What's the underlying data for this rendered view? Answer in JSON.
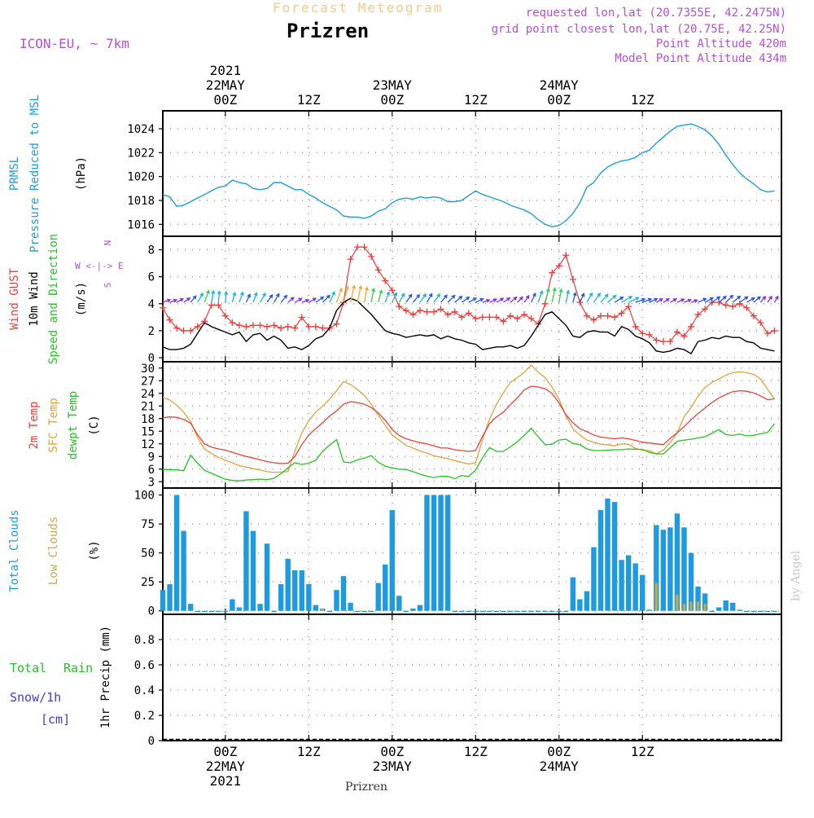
{
  "header": {
    "super_title": "Forecast Meteogram",
    "title": "Prizren",
    "model": "ICON-EU, ~ 7km",
    "info_lines": [
      "requested lon,lat (20.7355E, 42.2475N)",
      "grid point closest lon,lat (20.75E, 42.25N)",
      "Point Altitude 420m",
      "Model Point Altitude 434m"
    ]
  },
  "footer": {
    "location": "Prizren",
    "credit": "by Angel"
  },
  "time_axis": {
    "top_year": "2021",
    "ticks": [
      {
        "h": 24,
        "top": [
          "22MAY",
          "00Z"
        ],
        "bottom": [
          "00Z",
          "22MAY",
          "2021"
        ]
      },
      {
        "h": 36,
        "top": [
          "12Z"
        ],
        "bottom": [
          "12Z"
        ]
      },
      {
        "h": 48,
        "top": [
          "23MAY",
          "00Z"
        ],
        "bottom": [
          "00Z",
          "23MAY"
        ]
      },
      {
        "h": 60,
        "top": [
          "12Z"
        ],
        "bottom": [
          "12Z"
        ]
      },
      {
        "h": 72,
        "top": [
          "24MAY",
          "00Z"
        ],
        "bottom": [
          "00Z",
          "24MAY"
        ]
      },
      {
        "h": 84,
        "top": [
          "12Z"
        ],
        "bottom": [
          "12Z"
        ]
      }
    ]
  },
  "panel_labels": {
    "pressure": [
      "PRMSL",
      "Pressure Reduced to MSL",
      "(hPa)"
    ],
    "wind": [
      "Wind GUST",
      "10m Wind",
      "Speed and Direction",
      "(m/s)"
    ],
    "compass": [
      "N",
      "W <-|-> E",
      "S"
    ],
    "temp": [
      "2m Temp",
      "SFC Temp",
      "dewpt Temp",
      "(C)"
    ],
    "clouds": [
      "Total Clouds",
      "Low Clouds",
      "(%)"
    ],
    "precip": [
      "Total",
      "Rain",
      "Snow/1h",
      "[cm]",
      "1hr Precip (mm)"
    ]
  },
  "colors": {
    "pressure": "#1e9be0",
    "gust": "#ee3b3b",
    "wind": "#000000",
    "temp2m": "#e8403a",
    "sfc": "#e0a23a",
    "dewpt": "#22c422",
    "total_clouds": "#1e9be0",
    "low_clouds": "#c9a84a",
    "rain": "#22c422",
    "snow": "#3b3bdd",
    "meta": "#b44fd6"
  },
  "chart_data": [
    {
      "type": "line",
      "name": "pressure",
      "ylabel": "(hPa)",
      "ylim": [
        1015,
        1025.5
      ],
      "yticks": [
        1016,
        1018,
        1020,
        1022,
        1024
      ],
      "start_hour": 15,
      "step": 1,
      "series": [
        {
          "name": "PRMSL",
          "values": [
            1018.5,
            1018.3,
            1017.5,
            1017.6,
            1017.9,
            1018.2,
            1018.5,
            1018.8,
            1019.1,
            1019.2,
            1019.7,
            1019.5,
            1019.4,
            1019.0,
            1018.9,
            1019.0,
            1019.5,
            1019.5,
            1019.2,
            1018.9,
            1018.9,
            1018.5,
            1018.2,
            1017.8,
            1017.5,
            1017.2,
            1016.7,
            1016.6,
            1016.6,
            1016.5,
            1016.7,
            1017.1,
            1017.3,
            1017.8,
            1018.1,
            1018.2,
            1018.1,
            1018.3,
            1018.2,
            1018.3,
            1018.2,
            1017.9,
            1017.9,
            1018.0,
            1018.4,
            1018.8,
            1018.5,
            1018.3,
            1018.1,
            1017.9,
            1017.6,
            1017.4,
            1017.2,
            1016.9,
            1016.4,
            1016.0,
            1015.8,
            1015.9,
            1016.3,
            1016.9,
            1017.8,
            1019.1,
            1019.5,
            1020.3,
            1020.8,
            1021.1,
            1021.3,
            1021.4,
            1021.6,
            1022.0,
            1022.2,
            1022.8,
            1023.3,
            1023.8,
            1024.2,
            1024.3,
            1024.4,
            1024.2,
            1023.9,
            1023.4,
            1022.7,
            1021.8,
            1021.0,
            1020.3,
            1019.8,
            1019.4,
            1018.9,
            1018.7,
            1018.8
          ]
        }
      ]
    },
    {
      "type": "line",
      "name": "wind",
      "ylabel": "(m/s)",
      "ylim": [
        -0.3,
        9
      ],
      "yticks": [
        0,
        2,
        4,
        6,
        8
      ],
      "start_hour": 15,
      "step": 1,
      "series": [
        {
          "name": "Wind GUST",
          "values": [
            3.7,
            2.8,
            2.2,
            2.0,
            2.0,
            2.3,
            2.7,
            3.9,
            3.9,
            3.1,
            2.6,
            2.4,
            2.3,
            2.4,
            2.4,
            2.3,
            2.4,
            2.2,
            2.3,
            2.2,
            3.0,
            2.3,
            2.3,
            2.2,
            2.2,
            2.5,
            4.1,
            7.3,
            8.2,
            8.2,
            7.5,
            6.5,
            5.7,
            5.0,
            3.8,
            3.5,
            3.2,
            3.5,
            3.4,
            3.4,
            3.6,
            3.2,
            3.4,
            3.0,
            3.3,
            2.9,
            3.0,
            3.0,
            3.0,
            2.7,
            3.1,
            2.9,
            3.2,
            2.9,
            2.5,
            4.0,
            6.3,
            6.8,
            7.6,
            5.8,
            4.1,
            3.1,
            2.8,
            3.1,
            3.1,
            3.0,
            3.3,
            3.8,
            2.3,
            1.8,
            1.7,
            1.3,
            1.2,
            1.2,
            1.9,
            1.6,
            2.3,
            3.2,
            3.6,
            4.1,
            4.1,
            3.9,
            3.8,
            4.0,
            3.7,
            3.1,
            2.6,
            1.8,
            2.0
          ]
        },
        {
          "name": "10m Wind",
          "values": [
            0.8,
            0.6,
            0.6,
            0.7,
            1.0,
            1.8,
            2.6,
            2.3,
            2.1,
            1.9,
            1.7,
            1.9,
            1.2,
            1.7,
            1.8,
            1.3,
            1.6,
            1.3,
            0.7,
            0.8,
            0.6,
            0.9,
            1.4,
            1.6,
            2.2,
            3.5,
            4.1,
            4.4,
            4.2,
            3.7,
            3.2,
            2.6,
            2.0,
            1.8,
            1.7,
            1.5,
            1.6,
            1.7,
            1.6,
            1.7,
            1.4,
            1.6,
            1.4,
            1.3,
            1.1,
            1.0,
            0.6,
            0.7,
            0.8,
            0.8,
            0.9,
            0.7,
            0.9,
            1.6,
            2.4,
            3.2,
            3.4,
            2.9,
            2.4,
            1.6,
            1.5,
            1.9,
            2.0,
            1.9,
            1.9,
            1.6,
            2.3,
            2.1,
            1.6,
            1.4,
            1.1,
            0.5,
            0.4,
            0.5,
            0.7,
            0.6,
            0.3,
            1.2,
            1.3,
            1.5,
            1.4,
            1.6,
            1.5,
            1.5,
            1.2,
            1.1,
            0.7,
            0.6,
            0.5
          ]
        }
      ]
    },
    {
      "type": "line",
      "name": "temperature",
      "ylabel": "(C)",
      "ylim": [
        1.5,
        31.5
      ],
      "yticks": [
        3,
        6,
        9,
        12,
        15,
        18,
        21,
        24,
        27,
        30
      ],
      "start_hour": 15,
      "step": 1,
      "series": [
        {
          "name": "2m Temp",
          "values": [
            18.2,
            18.4,
            18.3,
            17.8,
            16.9,
            14.2,
            12.0,
            11.2,
            10.8,
            10.5,
            10.0,
            9.5,
            9.0,
            8.6,
            8.2,
            7.8,
            7.5,
            7.3,
            7.4,
            9.0,
            11.8,
            14.1,
            15.6,
            17.0,
            18.6,
            19.8,
            21.4,
            22.0,
            21.8,
            21.4,
            20.6,
            19.3,
            17.6,
            15.4,
            14.0,
            13.2,
            12.7,
            12.3,
            12.0,
            11.5,
            11.0,
            11.0,
            10.6,
            10.4,
            10.2,
            10.4,
            13.8,
            16.8,
            18.4,
            19.5,
            21.3,
            22.9,
            24.8,
            25.7,
            25.5,
            25.1,
            24.0,
            21.7,
            18.9,
            17.0,
            15.6,
            14.9,
            14.1,
            13.6,
            13.4,
            13.2,
            13.4,
            13.2,
            12.8,
            12.4,
            12.2,
            12.0,
            11.8,
            13.3,
            14.6,
            16.1,
            17.7,
            19.2,
            20.5,
            21.8,
            22.9,
            23.7,
            24.4,
            24.6,
            24.5,
            24.1,
            23.4,
            22.5,
            22.7
          ]
        },
        {
          "name": "SFC Temp",
          "values": [
            23.0,
            22.4,
            21.2,
            19.5,
            17.3,
            13.5,
            10.8,
            9.7,
            8.8,
            8.1,
            7.5,
            6.8,
            6.5,
            6.1,
            5.8,
            5.4,
            5.2,
            5.3,
            5.4,
            10.2,
            14.6,
            17.5,
            19.5,
            21.0,
            22.6,
            24.6,
            26.8,
            26.1,
            24.9,
            23.5,
            21.4,
            18.8,
            16.4,
            14.1,
            12.9,
            11.6,
            11.0,
            10.3,
            9.8,
            9.2,
            8.8,
            8.5,
            8.0,
            7.6,
            7.2,
            7.5,
            13.0,
            17.8,
            21.4,
            24.1,
            26.6,
            27.7,
            29.0,
            30.7,
            29.0,
            27.7,
            25.5,
            22.6,
            18.6,
            15.6,
            14.1,
            12.9,
            12.4,
            11.9,
            11.8,
            11.5,
            12.0,
            11.9,
            10.9,
            10.5,
            10.4,
            9.6,
            10.5,
            12.3,
            14.6,
            18.4,
            20.6,
            23.3,
            25.4,
            26.6,
            27.4,
            28.3,
            28.9,
            29.1,
            28.9,
            28.5,
            27.4,
            25.0,
            22.6
          ]
        },
        {
          "name": "dewpt Temp",
          "values": [
            5.9,
            5.9,
            5.8,
            5.6,
            9.3,
            7.4,
            5.7,
            5.0,
            4.3,
            3.6,
            3.3,
            3.2,
            3.4,
            3.5,
            3.6,
            3.5,
            3.8,
            4.9,
            6.3,
            7.5,
            7.1,
            7.4,
            8.1,
            10.2,
            11.7,
            13.0,
            7.7,
            7.5,
            8.2,
            8.6,
            9.2,
            7.6,
            6.7,
            6.3,
            6.0,
            5.9,
            5.4,
            4.8,
            4.3,
            4.0,
            4.3,
            4.3,
            3.7,
            4.5,
            4.2,
            5.8,
            8.7,
            11.1,
            10.2,
            10.2,
            11.3,
            12.5,
            14.0,
            15.7,
            13.7,
            11.8,
            11.9,
            12.9,
            13.1,
            12.1,
            11.8,
            10.8,
            10.4,
            10.4,
            10.5,
            10.6,
            10.6,
            10.8,
            10.7,
            10.7,
            10.0,
            9.6,
            9.6,
            11.1,
            12.6,
            12.9,
            13.1,
            13.4,
            13.7,
            14.5,
            15.4,
            14.2,
            14.0,
            14.3,
            13.9,
            14.0,
            14.4,
            14.7,
            16.8
          ]
        }
      ]
    },
    {
      "type": "bar",
      "name": "clouds",
      "ylabel": "(%)",
      "ylim": [
        -3,
        106
      ],
      "yticks": [
        0,
        25,
        50,
        75,
        100
      ],
      "start_hour": 15,
      "step": 1,
      "series": [
        {
          "name": "Total Clouds",
          "values": [
            18,
            23,
            100,
            69,
            6,
            0,
            0,
            0,
            0,
            0,
            10,
            3,
            86,
            69,
            6,
            58,
            0,
            23,
            45,
            35,
            35,
            23,
            5,
            2,
            0,
            18,
            30,
            7,
            0,
            0,
            0,
            24,
            40,
            87,
            13,
            0,
            2,
            5,
            100,
            100,
            100,
            100,
            0,
            0,
            0,
            0,
            0,
            0,
            0,
            0,
            0,
            0,
            0,
            0,
            0,
            0,
            0,
            0,
            0,
            29,
            10,
            17,
            55,
            87,
            97,
            94,
            44,
            48,
            41,
            31,
            1,
            74,
            70,
            72,
            84,
            72,
            50,
            21,
            15,
            0,
            3,
            9,
            7,
            1,
            0,
            0,
            0,
            0,
            0
          ]
        },
        {
          "name": "Low Clouds",
          "values": [
            0,
            0,
            0,
            0,
            0,
            0,
            0,
            0,
            0,
            0,
            0,
            0,
            0,
            0,
            0,
            0,
            0,
            0,
            0,
            0,
            0,
            0,
            0,
            2,
            0,
            0,
            0,
            0,
            0,
            0,
            0,
            0,
            0,
            0,
            0,
            0,
            0,
            0,
            0,
            0,
            0,
            0,
            0,
            0,
            0,
            0,
            0,
            0,
            0,
            0,
            0,
            0,
            0,
            0,
            0,
            0,
            0,
            0,
            0,
            0,
            0,
            0,
            0,
            0,
            0,
            0,
            0,
            0,
            0,
            0,
            0,
            24,
            0,
            0,
            14,
            6,
            8,
            8,
            6,
            0,
            0,
            0,
            0,
            0,
            0,
            0,
            0,
            0,
            0
          ]
        }
      ]
    },
    {
      "type": "line",
      "name": "precipitation",
      "ylabel": "1hr Precip (mm)",
      "ylim": [
        0,
        1.0
      ],
      "yticks": [
        0,
        0.2,
        0.4,
        0.6,
        0.8
      ],
      "start_hour": 15,
      "step": 1,
      "series": [
        {
          "name": "Total Rain",
          "values": [
            0,
            0,
            0,
            0,
            0,
            0,
            0,
            0,
            0,
            0,
            0,
            0,
            0,
            0,
            0,
            0,
            0,
            0,
            0,
            0,
            0,
            0,
            0,
            0,
            0,
            0,
            0,
            0,
            0,
            0,
            0,
            0,
            0,
            0,
            0,
            0,
            0,
            0,
            0,
            0,
            0,
            0,
            0,
            0,
            0,
            0,
            0,
            0,
            0,
            0,
            0,
            0,
            0,
            0,
            0,
            0,
            0,
            0,
            0,
            0,
            0,
            0,
            0,
            0,
            0,
            0,
            0,
            0,
            0,
            0,
            0,
            0,
            0,
            0,
            0,
            0,
            0,
            0,
            0,
            0,
            0,
            0,
            0,
            0,
            0,
            0,
            0,
            0,
            0
          ]
        }
      ]
    },
    {
      "type": "scatter",
      "name": "wind_direction_arrows",
      "y_value": 4.1,
      "start_hour": 15,
      "step": 1,
      "dir_deg": [
        250,
        250,
        240,
        235,
        220,
        210,
        200,
        190,
        185,
        185,
        195,
        200,
        205,
        200,
        210,
        215,
        210,
        220,
        230,
        240,
        250,
        240,
        235,
        225,
        205,
        200,
        195,
        193,
        192,
        190,
        190,
        195,
        200,
        205,
        210,
        215,
        220,
        215,
        210,
        215,
        220,
        225,
        230,
        235,
        240,
        245,
        250,
        245,
        240,
        235,
        230,
        225,
        215,
        205,
        200,
        195,
        192,
        190,
        192,
        195,
        205,
        210,
        215,
        222,
        230,
        238,
        240,
        245,
        250,
        248,
        245,
        240,
        238,
        240,
        245,
        248,
        250,
        245,
        240,
        235,
        230,
        225,
        230,
        235,
        240,
        230,
        220,
        215,
        210
      ]
    }
  ]
}
